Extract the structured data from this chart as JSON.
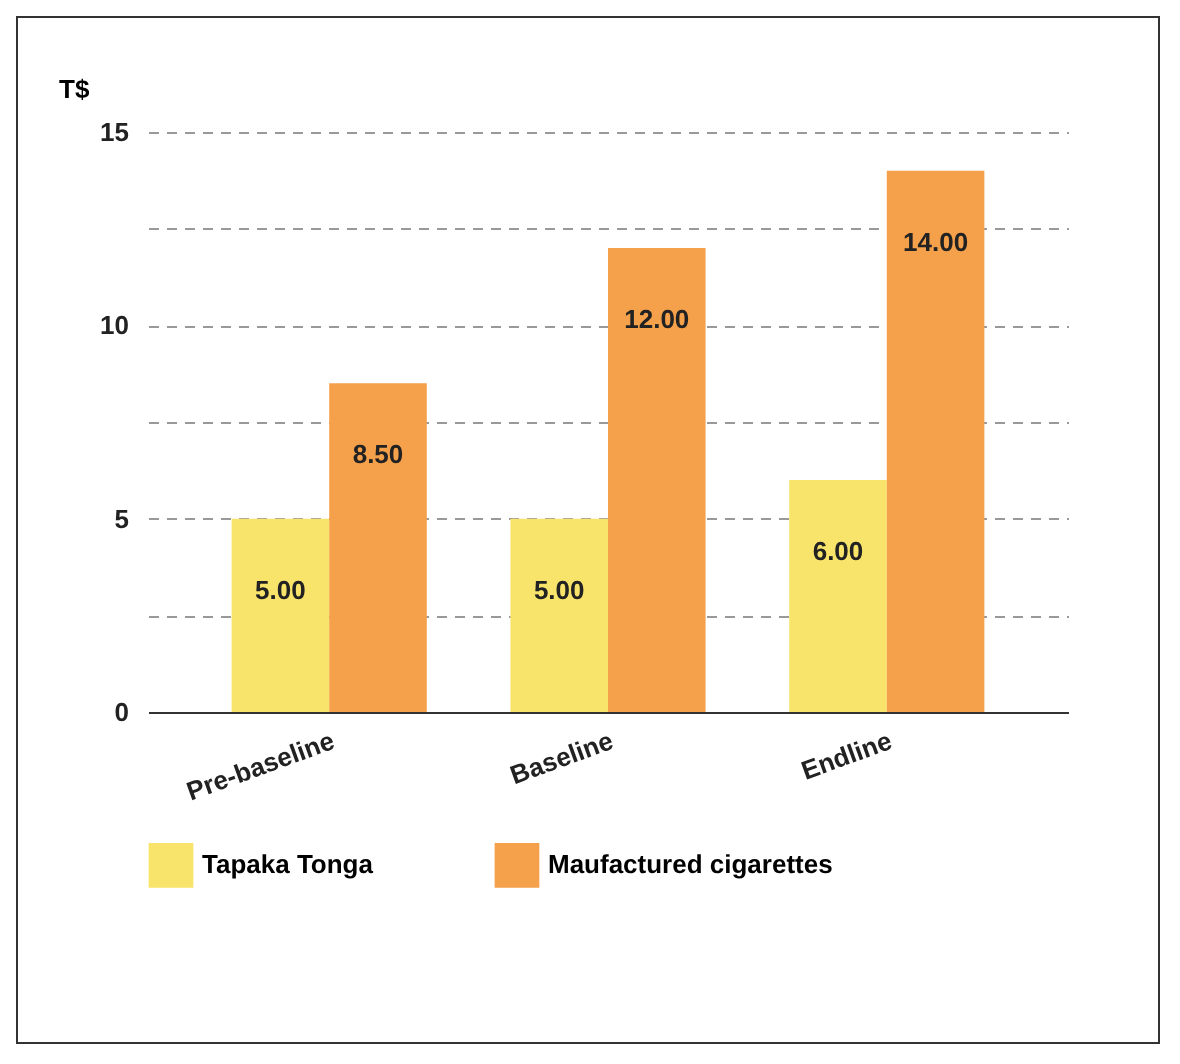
{
  "chart_data": {
    "type": "bar",
    "ylabel": "T$",
    "categories": [
      "Pre-baseline",
      "Baseline",
      "Endline"
    ],
    "series": [
      {
        "name": "Tapaka Tonga",
        "color": "#f9e46b",
        "values": [
          5.0,
          5.0,
          6.0
        ],
        "value_labels": [
          "5.00",
          "5.00",
          "6.00"
        ]
      },
      {
        "name": "Maufactured cigarettes",
        "color": "#f5a04a",
        "values": [
          8.5,
          12.0,
          14.0
        ],
        "value_labels": [
          "8.50",
          "12.00",
          "14.00"
        ]
      }
    ],
    "ylim": [
      0,
      15
    ],
    "yticks": [
      0,
      {
        "value": 2.5,
        "label": null
      },
      5,
      {
        "value": 7.5,
        "label": null
      },
      10,
      {
        "value": 12.5,
        "label": null
      },
      15
    ],
    "grid": "y",
    "legend": "bottom"
  }
}
